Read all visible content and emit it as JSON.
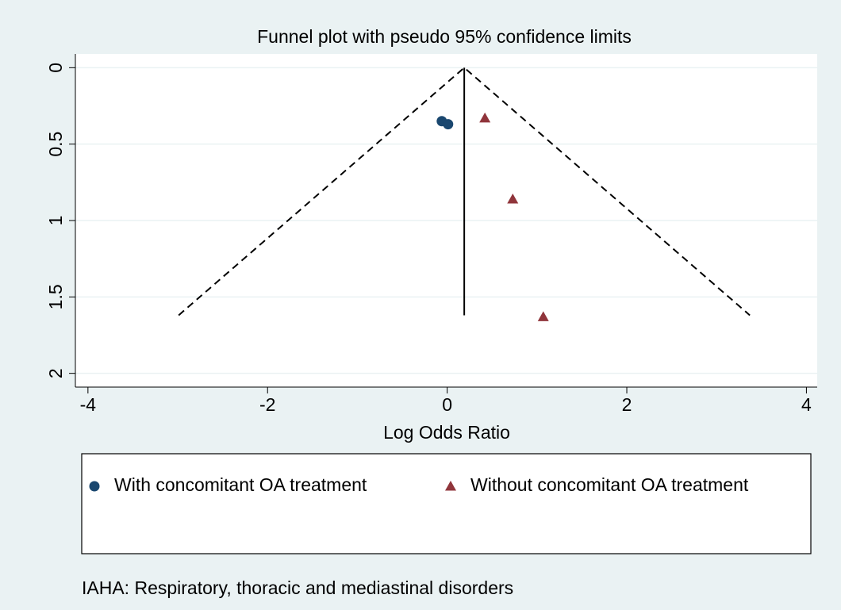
{
  "chart_data": {
    "type": "funnel",
    "title": "Funnel plot with pseudo 95% confidence limits",
    "x_label": "Log Odds Ratio",
    "note": "IAHA: Respiratory, thoracic and mediastinal disorders",
    "xlim": [
      -4.14,
      4.12
    ],
    "xticks": [
      -4,
      -2,
      0,
      2,
      4
    ],
    "ylim": [
      -0.09,
      2.09
    ],
    "y_reversed": true,
    "yticks": [
      0,
      0.5,
      1,
      1.5,
      2
    ],
    "grid": true,
    "series": [
      {
        "name": "With concomitant OA treatment",
        "color": "#1a476f",
        "marker": "circle",
        "x": [
          -0.06,
          0.01
        ],
        "values": [
          0.35,
          0.37
        ]
      },
      {
        "name": "Without concomitant OA treatment",
        "color": "#90353b",
        "marker": "triangle",
        "x": [
          0.42,
          0.73,
          1.07
        ],
        "values": [
          0.33,
          0.86,
          1.63
        ]
      }
    ],
    "funnel": {
      "x": [
        -2.99,
        0.19,
        3.37
      ],
      "values": [
        1.62,
        0,
        1.62
      ]
    },
    "null_line": {
      "x": [
        0.19,
        0.19
      ],
      "values": [
        0,
        1.62
      ]
    }
  }
}
